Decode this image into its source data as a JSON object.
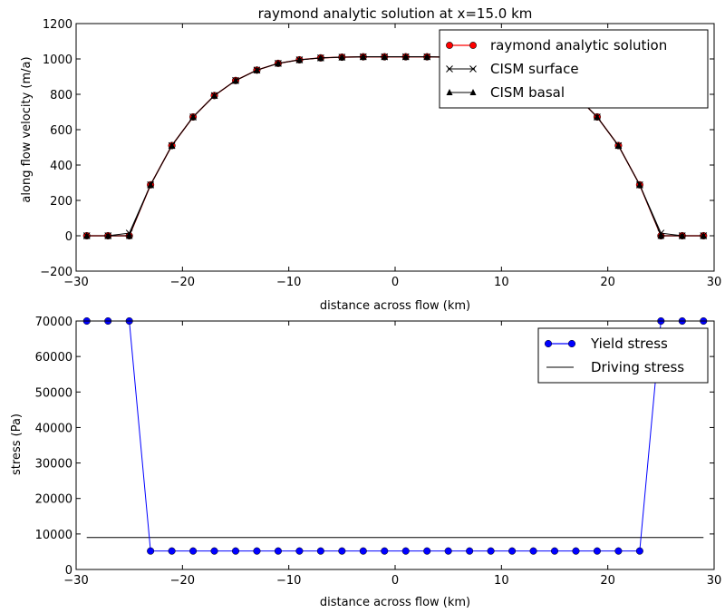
{
  "chart_data": [
    {
      "type": "line",
      "title": "raymond analytic solution at x=15.0 km",
      "xlabel": "distance across flow (km)",
      "ylabel": "along flow velocity (m/a)",
      "xlim": [
        -30,
        30
      ],
      "ylim": [
        -200,
        1200
      ],
      "xticks": [
        -30,
        -20,
        -10,
        0,
        10,
        20,
        30
      ],
      "yticks": [
        -200,
        0,
        200,
        400,
        600,
        800,
        1000,
        1200
      ],
      "x_tick_labels": [
        "−30",
        "−20",
        "−10",
        "0",
        "10",
        "20",
        "30"
      ],
      "y_tick_labels": [
        "−200",
        "0",
        "200",
        "400",
        "600",
        "800",
        "1000",
        "1200"
      ],
      "grid": false,
      "legend": "top-right",
      "x": [
        -29,
        -27,
        -25,
        -23,
        -21,
        -19,
        -17,
        -15,
        -13,
        -11,
        -9,
        -7,
        -5,
        -3,
        -1,
        1,
        3,
        5,
        7,
        9,
        11,
        13,
        15,
        17,
        19,
        21,
        23,
        25,
        27,
        29
      ],
      "series": [
        {
          "name": "raymond analytic solution",
          "color": "#ff0000",
          "marker": "circle",
          "values": [
            0,
            0,
            0,
            288,
            510,
            672,
            793,
            878,
            937,
            975,
            995,
            1006,
            1010,
            1012,
            1012,
            1012,
            1012,
            1010,
            1006,
            995,
            975,
            937,
            878,
            793,
            672,
            510,
            288,
            0,
            0,
            0
          ]
        },
        {
          "name": "CISM surface",
          "color": "#000000",
          "marker": "x",
          "values": [
            0,
            0,
            15,
            288,
            510,
            672,
            793,
            878,
            937,
            975,
            995,
            1006,
            1010,
            1012,
            1012,
            1012,
            1012,
            1010,
            1006,
            995,
            975,
            937,
            878,
            793,
            672,
            510,
            288,
            15,
            0,
            0
          ]
        },
        {
          "name": "CISM basal",
          "color": "#000000",
          "marker": "triangle",
          "values": [
            0,
            0,
            0,
            288,
            510,
            672,
            793,
            878,
            937,
            975,
            995,
            1006,
            1010,
            1012,
            1012,
            1012,
            1012,
            1010,
            1006,
            995,
            975,
            937,
            878,
            793,
            672,
            510,
            288,
            0,
            0,
            0
          ]
        }
      ]
    },
    {
      "type": "line",
      "title": "",
      "xlabel": "distance across flow (km)",
      "ylabel": "stress (Pa)",
      "xlim": [
        -30,
        30
      ],
      "ylim": [
        0,
        70000
      ],
      "xticks": [
        -30,
        -20,
        -10,
        0,
        10,
        20,
        30
      ],
      "yticks": [
        0,
        10000,
        20000,
        30000,
        40000,
        50000,
        60000,
        70000
      ],
      "x_tick_labels": [
        "−30",
        "−20",
        "−10",
        "0",
        "10",
        "20",
        "30"
      ],
      "y_tick_labels": [
        "0",
        "10000",
        "20000",
        "30000",
        "40000",
        "50000",
        "60000",
        "70000"
      ],
      "grid": false,
      "legend": "top-right",
      "series": [
        {
          "name": "Yield stress",
          "color": "#0000ff",
          "marker": "circle",
          "x": [
            -29,
            -27,
            -25,
            -23,
            -21,
            -19,
            -17,
            -15,
            -13,
            -11,
            -9,
            -7,
            -5,
            -3,
            -1,
            1,
            3,
            5,
            7,
            9,
            11,
            13,
            15,
            17,
            19,
            21,
            23,
            25,
            27,
            29
          ],
          "values": [
            70000,
            70000,
            70000,
            5200,
            5200,
            5200,
            5200,
            5200,
            5200,
            5200,
            5200,
            5200,
            5200,
            5200,
            5200,
            5200,
            5200,
            5200,
            5200,
            5200,
            5200,
            5200,
            5200,
            5200,
            5200,
            5200,
            5200,
            70000,
            70000,
            70000
          ]
        },
        {
          "name": "Driving stress",
          "color": "#000000",
          "marker": "none",
          "x": [
            -29,
            29
          ],
          "values": [
            9000,
            9000
          ]
        }
      ]
    }
  ]
}
